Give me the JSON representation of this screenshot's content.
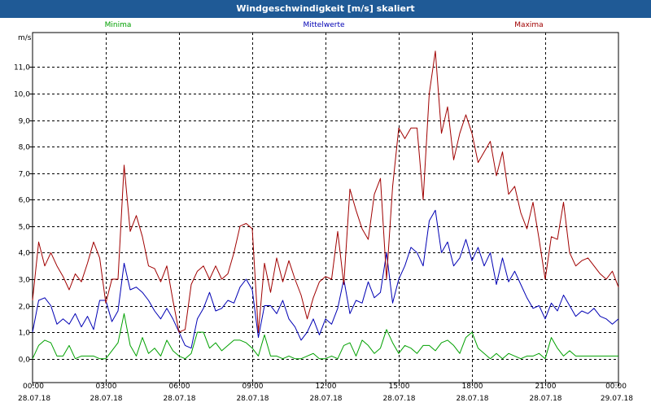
{
  "window": {
    "title": "Windgeschwindigkeit [m/s] skaliert"
  },
  "colors": {
    "background": "#ffffff",
    "titlebar": "#1f5a96",
    "grid": "#000000",
    "minima": "#00a000",
    "mittelwerte": "#0000b4",
    "maxima": "#a00000"
  },
  "chart_data": {
    "type": "line",
    "title": "Windgeschwindigkeit [m/s] skaliert",
    "ylabel": "m/s",
    "ylim": [
      -0.9,
      12.3
    ],
    "xlim": [
      0,
      24
    ],
    "grid": true,
    "legend_position": "top",
    "y_ticks": [
      {
        "value": 0,
        "label": "0,0"
      },
      {
        "value": 1,
        "label": "1,0"
      },
      {
        "value": 2,
        "label": "2,0"
      },
      {
        "value": 3,
        "label": "3,0"
      },
      {
        "value": 4,
        "label": "4,0"
      },
      {
        "value": 5,
        "label": "5,0"
      },
      {
        "value": 6,
        "label": "6,0"
      },
      {
        "value": 7,
        "label": "7,0"
      },
      {
        "value": 8,
        "label": "8,0"
      },
      {
        "value": 9,
        "label": "9,0"
      },
      {
        "value": 10,
        "label": "10,0"
      },
      {
        "value": 11,
        "label": "11,0"
      }
    ],
    "x_ticks": [
      {
        "value": 0,
        "time": "00:00",
        "date": "28.07.18"
      },
      {
        "value": 3,
        "time": "03:00",
        "date": "28.07.18"
      },
      {
        "value": 6,
        "time": "06:00",
        "date": "28.07.18"
      },
      {
        "value": 9,
        "time": "09:00",
        "date": "28.07.18"
      },
      {
        "value": 12,
        "time": "12:00",
        "date": "28.07.18"
      },
      {
        "value": 15,
        "time": "15:00",
        "date": "28.07.18"
      },
      {
        "value": 18,
        "time": "18:00",
        "date": "28.07.18"
      },
      {
        "value": 21,
        "time": "21:00",
        "date": "28.07.18"
      },
      {
        "value": 24,
        "time": "00:00",
        "date": "29.07.18"
      }
    ],
    "series": [
      {
        "name": "Minima",
        "color": "#00a000",
        "points": [
          [
            0,
            0.0
          ],
          [
            0.25,
            0.5
          ],
          [
            0.5,
            0.7
          ],
          [
            0.75,
            0.6
          ],
          [
            1.0,
            0.1
          ],
          [
            1.25,
            0.1
          ],
          [
            1.5,
            0.5
          ],
          [
            1.75,
            0.0
          ],
          [
            2.0,
            0.1
          ],
          [
            2.25,
            0.1
          ],
          [
            2.5,
            0.1
          ],
          [
            2.75,
            0.0
          ],
          [
            3.0,
            0.0
          ],
          [
            3.25,
            0.3
          ],
          [
            3.5,
            0.6
          ],
          [
            3.75,
            1.7
          ],
          [
            4.0,
            0.5
          ],
          [
            4.25,
            0.1
          ],
          [
            4.5,
            0.8
          ],
          [
            4.75,
            0.2
          ],
          [
            5.0,
            0.4
          ],
          [
            5.25,
            0.1
          ],
          [
            5.5,
            0.7
          ],
          [
            5.75,
            0.3
          ],
          [
            6.0,
            0.1
          ],
          [
            6.25,
            0.0
          ],
          [
            6.5,
            0.2
          ],
          [
            6.75,
            1.0
          ],
          [
            7.0,
            1.0
          ],
          [
            7.25,
            0.4
          ],
          [
            7.5,
            0.6
          ],
          [
            7.75,
            0.3
          ],
          [
            8.0,
            0.5
          ],
          [
            8.25,
            0.7
          ],
          [
            8.5,
            0.7
          ],
          [
            8.75,
            0.6
          ],
          [
            9.0,
            0.4
          ],
          [
            9.25,
            0.1
          ],
          [
            9.5,
            0.9
          ],
          [
            9.75,
            0.1
          ],
          [
            10.0,
            0.1
          ],
          [
            10.25,
            0.0
          ],
          [
            10.5,
            0.1
          ],
          [
            10.75,
            0.0
          ],
          [
            11.0,
            0.0
          ],
          [
            11.25,
            0.1
          ],
          [
            11.5,
            0.2
          ],
          [
            11.75,
            0.0
          ],
          [
            12.0,
            0.0
          ],
          [
            12.25,
            0.1
          ],
          [
            12.5,
            0.0
          ],
          [
            12.75,
            0.5
          ],
          [
            13.0,
            0.6
          ],
          [
            13.25,
            0.1
          ],
          [
            13.5,
            0.7
          ],
          [
            13.75,
            0.5
          ],
          [
            14.0,
            0.2
          ],
          [
            14.25,
            0.4
          ],
          [
            14.5,
            1.1
          ],
          [
            14.75,
            0.6
          ],
          [
            15.0,
            0.2
          ],
          [
            15.25,
            0.5
          ],
          [
            15.5,
            0.4
          ],
          [
            15.75,
            0.2
          ],
          [
            16.0,
            0.5
          ],
          [
            16.25,
            0.5
          ],
          [
            16.5,
            0.3
          ],
          [
            16.75,
            0.6
          ],
          [
            17.0,
            0.7
          ],
          [
            17.25,
            0.5
          ],
          [
            17.5,
            0.2
          ],
          [
            17.75,
            0.8
          ],
          [
            18.0,
            1.0
          ],
          [
            18.25,
            0.4
          ],
          [
            18.5,
            0.2
          ],
          [
            18.75,
            0.0
          ],
          [
            19.0,
            0.2
          ],
          [
            19.25,
            0.0
          ],
          [
            19.5,
            0.2
          ],
          [
            19.75,
            0.1
          ],
          [
            20.0,
            0.0
          ],
          [
            20.25,
            0.1
          ],
          [
            20.5,
            0.1
          ],
          [
            20.75,
            0.2
          ],
          [
            21.0,
            0.0
          ],
          [
            21.25,
            0.8
          ],
          [
            21.5,
            0.4
          ],
          [
            21.75,
            0.1
          ],
          [
            22.0,
            0.3
          ],
          [
            22.25,
            0.1
          ],
          [
            22.5,
            0.1
          ],
          [
            22.75,
            0.1
          ],
          [
            23.0,
            0.1
          ],
          [
            23.25,
            0.1
          ],
          [
            23.5,
            0.1
          ],
          [
            23.75,
            0.1
          ],
          [
            24.0,
            0.1
          ]
        ]
      },
      {
        "name": "Mittelwerte",
        "color": "#0000b4",
        "points": [
          [
            0,
            1.0
          ],
          [
            0.25,
            2.2
          ],
          [
            0.5,
            2.3
          ],
          [
            0.75,
            2.0
          ],
          [
            1.0,
            1.3
          ],
          [
            1.25,
            1.5
          ],
          [
            1.5,
            1.3
          ],
          [
            1.75,
            1.7
          ],
          [
            2.0,
            1.2
          ],
          [
            2.25,
            1.6
          ],
          [
            2.5,
            1.1
          ],
          [
            2.75,
            2.2
          ],
          [
            3.0,
            2.2
          ],
          [
            3.25,
            1.4
          ],
          [
            3.5,
            1.8
          ],
          [
            3.75,
            3.6
          ],
          [
            4.0,
            2.6
          ],
          [
            4.25,
            2.7
          ],
          [
            4.5,
            2.5
          ],
          [
            4.75,
            2.2
          ],
          [
            5.0,
            1.8
          ],
          [
            5.25,
            1.5
          ],
          [
            5.5,
            1.9
          ],
          [
            5.75,
            1.5
          ],
          [
            6.0,
            1.0
          ],
          [
            6.25,
            0.5
          ],
          [
            6.5,
            0.4
          ],
          [
            6.75,
            1.5
          ],
          [
            7.0,
            1.9
          ],
          [
            7.25,
            2.5
          ],
          [
            7.5,
            1.8
          ],
          [
            7.75,
            1.9
          ],
          [
            8.0,
            2.2
          ],
          [
            8.25,
            2.1
          ],
          [
            8.5,
            2.7
          ],
          [
            8.75,
            3.0
          ],
          [
            9.0,
            2.6
          ],
          [
            9.25,
            0.8
          ],
          [
            9.5,
            2.0
          ],
          [
            9.75,
            2.0
          ],
          [
            10.0,
            1.7
          ],
          [
            10.25,
            2.2
          ],
          [
            10.5,
            1.5
          ],
          [
            10.75,
            1.2
          ],
          [
            11.0,
            0.7
          ],
          [
            11.25,
            1.0
          ],
          [
            11.5,
            1.5
          ],
          [
            11.75,
            0.9
          ],
          [
            12.0,
            1.5
          ],
          [
            12.25,
            1.3
          ],
          [
            12.5,
            1.9
          ],
          [
            12.75,
            3.0
          ],
          [
            13.0,
            1.7
          ],
          [
            13.25,
            2.2
          ],
          [
            13.5,
            2.1
          ],
          [
            13.75,
            2.9
          ],
          [
            14.0,
            2.3
          ],
          [
            14.25,
            2.5
          ],
          [
            14.5,
            4.0
          ],
          [
            14.75,
            2.1
          ],
          [
            15.0,
            3.0
          ],
          [
            15.25,
            3.5
          ],
          [
            15.5,
            4.2
          ],
          [
            15.75,
            4.0
          ],
          [
            16.0,
            3.5
          ],
          [
            16.25,
            5.2
          ],
          [
            16.5,
            5.6
          ],
          [
            16.75,
            4.0
          ],
          [
            17.0,
            4.4
          ],
          [
            17.25,
            3.5
          ],
          [
            17.5,
            3.8
          ],
          [
            17.75,
            4.5
          ],
          [
            18.0,
            3.7
          ],
          [
            18.25,
            4.2
          ],
          [
            18.5,
            3.5
          ],
          [
            18.75,
            4.0
          ],
          [
            19.0,
            2.8
          ],
          [
            19.25,
            3.8
          ],
          [
            19.5,
            2.9
          ],
          [
            19.75,
            3.3
          ],
          [
            20.0,
            2.8
          ],
          [
            20.25,
            2.3
          ],
          [
            20.5,
            1.9
          ],
          [
            20.75,
            2.0
          ],
          [
            21.0,
            1.5
          ],
          [
            21.25,
            2.1
          ],
          [
            21.5,
            1.8
          ],
          [
            21.75,
            2.4
          ],
          [
            22.0,
            2.0
          ],
          [
            22.25,
            1.6
          ],
          [
            22.5,
            1.8
          ],
          [
            22.75,
            1.7
          ],
          [
            23.0,
            1.9
          ],
          [
            23.25,
            1.6
          ],
          [
            23.5,
            1.5
          ],
          [
            23.75,
            1.3
          ],
          [
            24.0,
            1.5
          ]
        ]
      },
      {
        "name": "Maxima",
        "color": "#a00000",
        "points": [
          [
            0,
            2.2
          ],
          [
            0.25,
            4.4
          ],
          [
            0.5,
            3.5
          ],
          [
            0.75,
            4.0
          ],
          [
            1.0,
            3.5
          ],
          [
            1.25,
            3.1
          ],
          [
            1.5,
            2.6
          ],
          [
            1.75,
            3.2
          ],
          [
            2.0,
            2.9
          ],
          [
            2.25,
            3.6
          ],
          [
            2.5,
            4.4
          ],
          [
            2.75,
            3.8
          ],
          [
            3.0,
            2.1
          ],
          [
            3.25,
            3.0
          ],
          [
            3.5,
            3.0
          ],
          [
            3.75,
            7.3
          ],
          [
            4.0,
            4.8
          ],
          [
            4.25,
            5.4
          ],
          [
            4.5,
            4.6
          ],
          [
            4.75,
            3.5
          ],
          [
            5.0,
            3.4
          ],
          [
            5.25,
            2.9
          ],
          [
            5.5,
            3.5
          ],
          [
            5.75,
            2.2
          ],
          [
            6.0,
            1.0
          ],
          [
            6.25,
            1.1
          ],
          [
            6.5,
            2.8
          ],
          [
            6.75,
            3.3
          ],
          [
            7.0,
            3.5
          ],
          [
            7.25,
            3.0
          ],
          [
            7.5,
            3.5
          ],
          [
            7.75,
            3.0
          ],
          [
            8.0,
            3.2
          ],
          [
            8.25,
            4.0
          ],
          [
            8.5,
            5.0
          ],
          [
            8.75,
            5.1
          ],
          [
            9.0,
            4.9
          ],
          [
            9.25,
            1.0
          ],
          [
            9.5,
            3.6
          ],
          [
            9.75,
            2.5
          ],
          [
            10.0,
            3.8
          ],
          [
            10.25,
            2.9
          ],
          [
            10.5,
            3.7
          ],
          [
            10.75,
            3.0
          ],
          [
            11.0,
            2.4
          ],
          [
            11.25,
            1.5
          ],
          [
            11.5,
            2.3
          ],
          [
            11.75,
            2.9
          ],
          [
            12.0,
            3.1
          ],
          [
            12.25,
            3.0
          ],
          [
            12.5,
            4.8
          ],
          [
            12.75,
            2.8
          ],
          [
            13.0,
            6.4
          ],
          [
            13.25,
            5.6
          ],
          [
            13.5,
            4.9
          ],
          [
            13.75,
            4.5
          ],
          [
            14.0,
            6.2
          ],
          [
            14.25,
            6.8
          ],
          [
            14.5,
            3.0
          ],
          [
            14.75,
            6.5
          ],
          [
            15.0,
            8.7
          ],
          [
            15.25,
            8.3
          ],
          [
            15.5,
            8.7
          ],
          [
            15.75,
            8.7
          ],
          [
            16.0,
            6.0
          ],
          [
            16.25,
            10.0
          ],
          [
            16.5,
            11.6
          ],
          [
            16.75,
            8.5
          ],
          [
            17.0,
            9.5
          ],
          [
            17.25,
            7.5
          ],
          [
            17.5,
            8.5
          ],
          [
            17.75,
            9.2
          ],
          [
            18.0,
            8.5
          ],
          [
            18.25,
            7.4
          ],
          [
            18.5,
            7.8
          ],
          [
            18.75,
            8.2
          ],
          [
            19.0,
            6.9
          ],
          [
            19.25,
            7.8
          ],
          [
            19.5,
            6.2
          ],
          [
            19.75,
            6.5
          ],
          [
            20.0,
            5.5
          ],
          [
            20.25,
            4.9
          ],
          [
            20.5,
            5.9
          ],
          [
            20.75,
            4.5
          ],
          [
            21.0,
            3.0
          ],
          [
            21.25,
            4.6
          ],
          [
            21.5,
            4.5
          ],
          [
            21.75,
            5.9
          ],
          [
            22.0,
            4.0
          ],
          [
            22.25,
            3.5
          ],
          [
            22.5,
            3.7
          ],
          [
            22.75,
            3.8
          ],
          [
            23.0,
            3.5
          ],
          [
            23.25,
            3.2
          ],
          [
            23.5,
            3.0
          ],
          [
            23.75,
            3.3
          ],
          [
            24.0,
            2.7
          ]
        ]
      }
    ]
  }
}
